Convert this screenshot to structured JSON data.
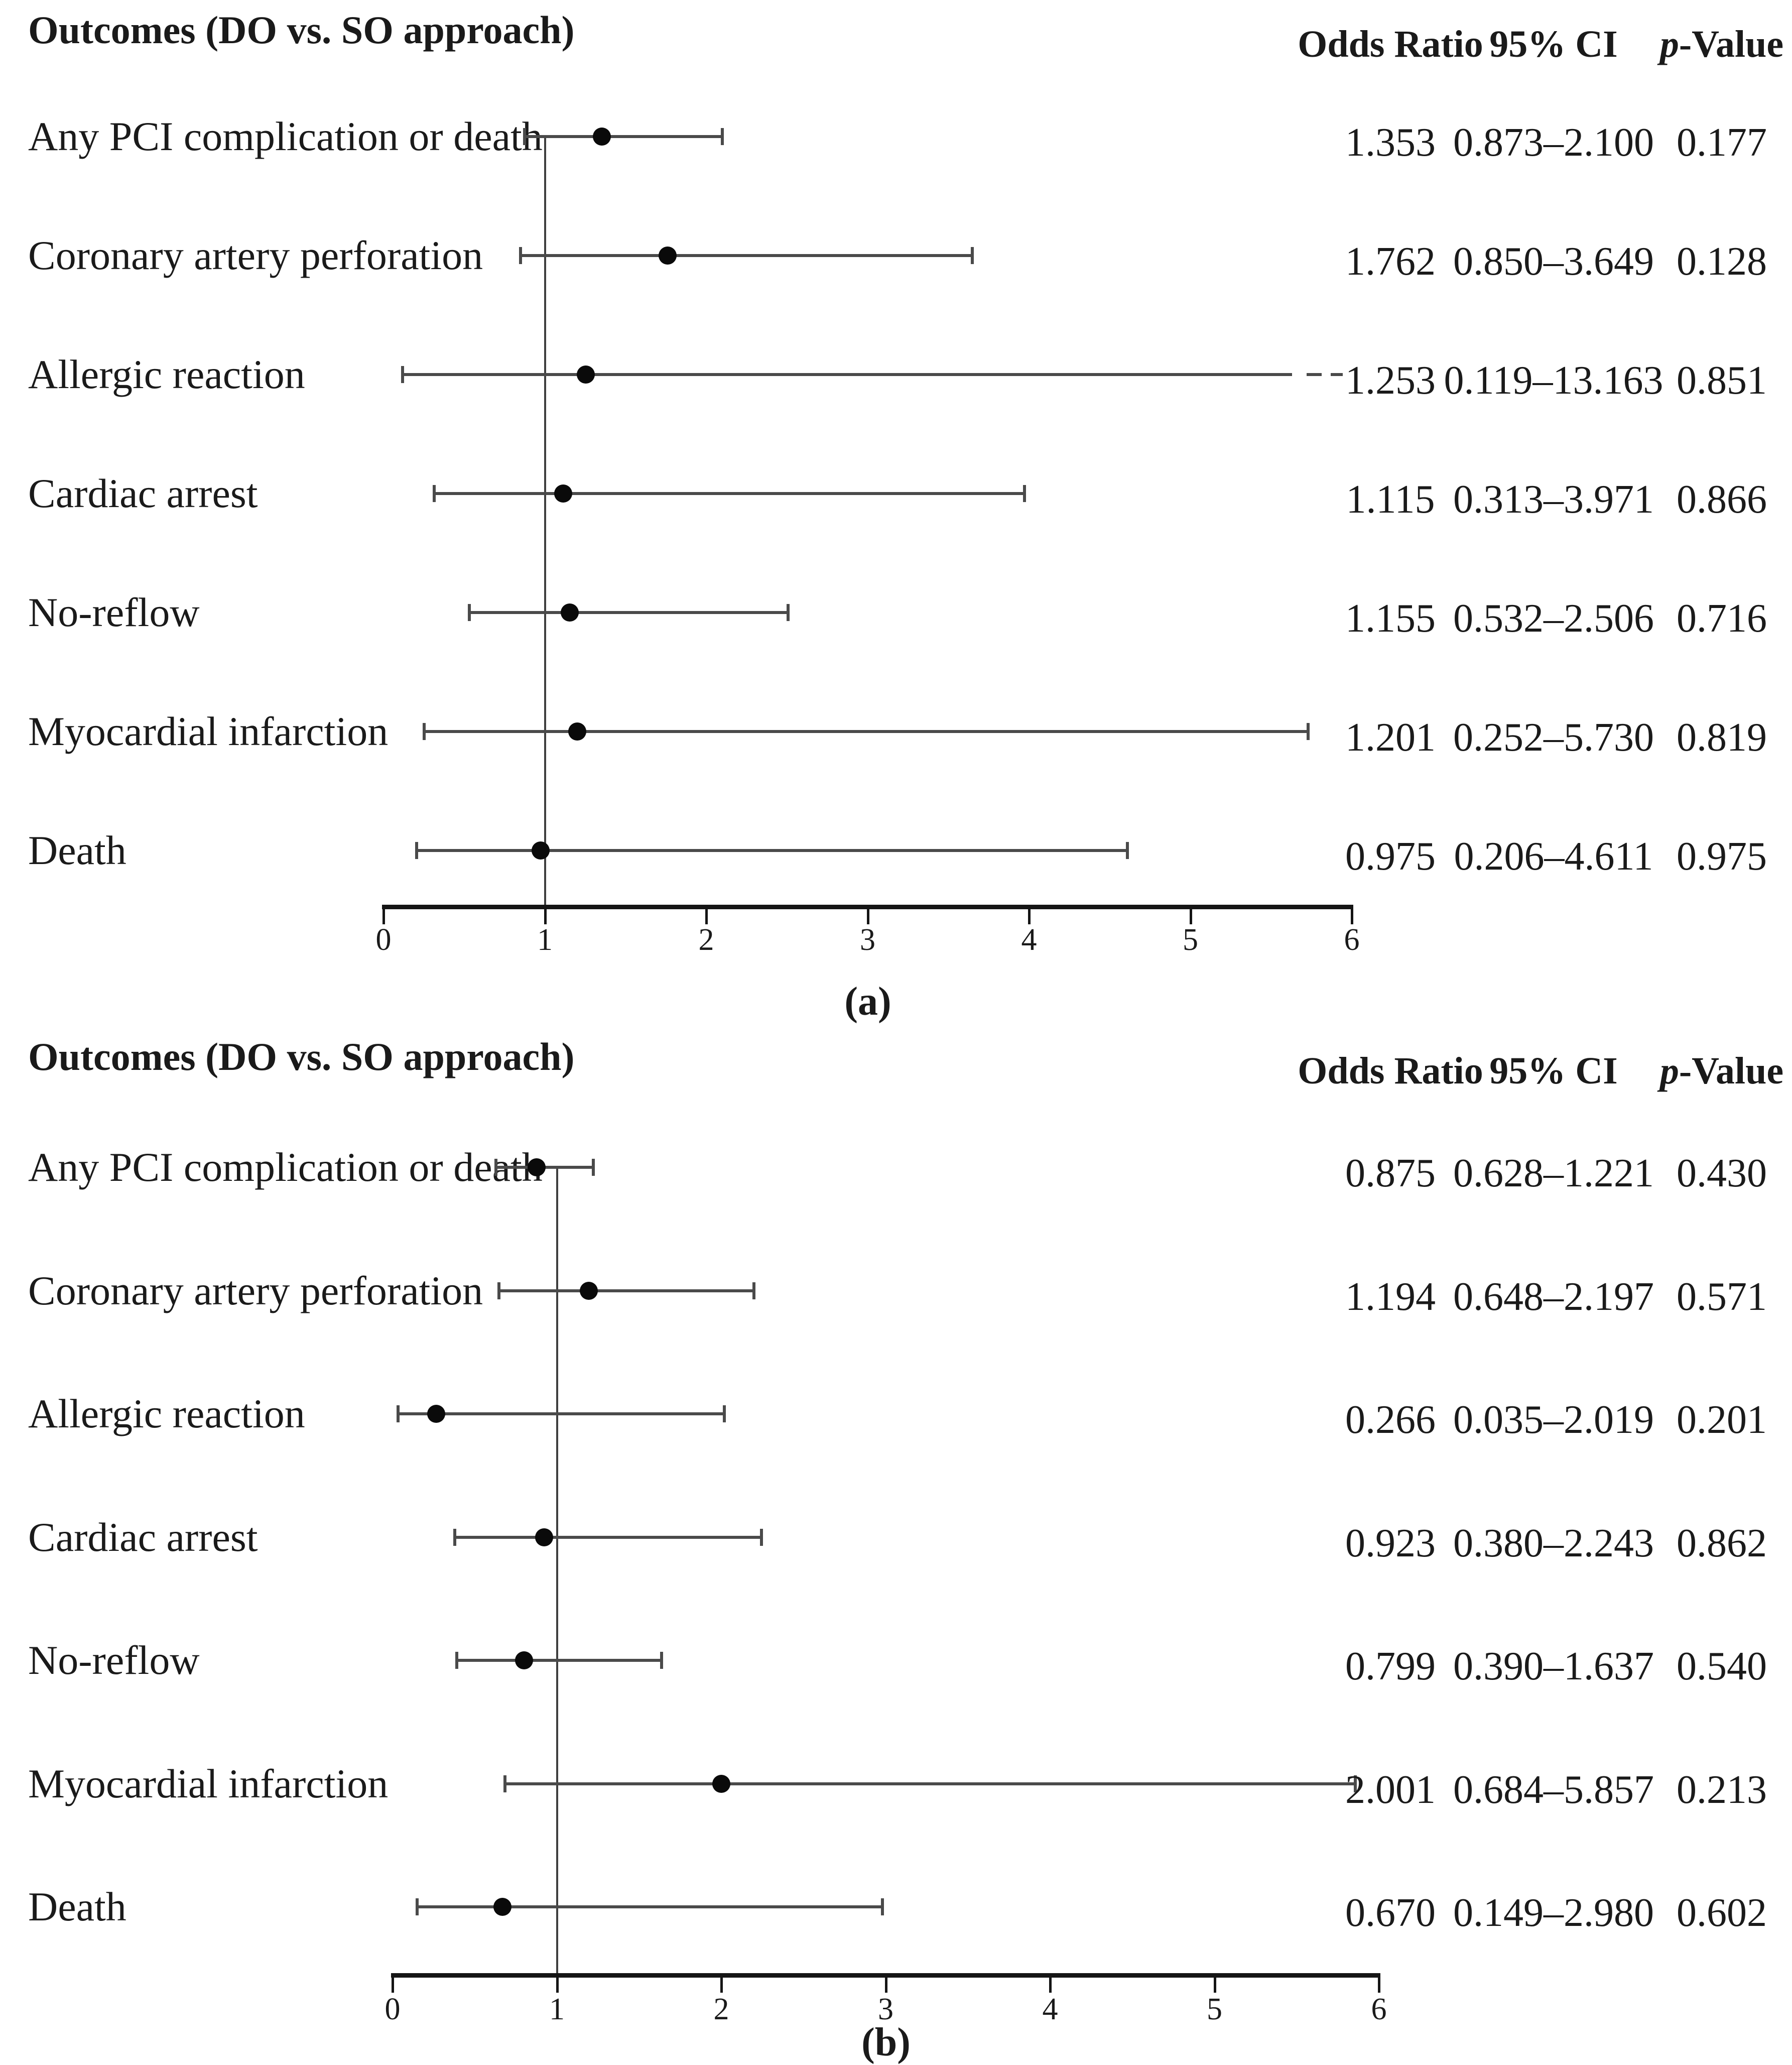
{
  "figure": {
    "background": "#ffffff",
    "colors": {
      "text": "#1a1a1a",
      "whisker_line": "#4a4a4a",
      "reference_line": "#3f3f3f",
      "axis": "#151515",
      "marker": "#0a0a0a"
    }
  },
  "chart_data": [
    {
      "type": "scatter",
      "subtype": "forest_plot",
      "panel_label": "(a)",
      "title": "Outcomes (DO vs. SO approach)",
      "column_headers": {
        "odds_ratio": "Odds Ratio",
        "ci": "95% CI",
        "p_italic": "p",
        "p_rest": "-Value"
      },
      "xlim": [
        0,
        6
      ],
      "xticks": [
        0,
        1,
        2,
        3,
        4,
        5,
        6
      ],
      "reference_line_x": 1,
      "grid": false,
      "legend": "none",
      "rows": [
        {
          "outcome": "Any PCI complication or death",
          "odds_ratio": 1.353,
          "ci_low": 0.873,
          "ci_high": 2.1,
          "p_value": 0.177
        },
        {
          "outcome": "Coronary artery perforation",
          "odds_ratio": 1.762,
          "ci_low": 0.85,
          "ci_high": 3.649,
          "p_value": 0.128
        },
        {
          "outcome": "Allergic reaction",
          "odds_ratio": 1.253,
          "ci_low": 0.119,
          "ci_high": 13.163,
          "p_value": 0.851,
          "ci_exceeds_axis": true
        },
        {
          "outcome": "Cardiac arrest",
          "odds_ratio": 1.115,
          "ci_low": 0.313,
          "ci_high": 3.971,
          "p_value": 0.866
        },
        {
          "outcome": "No-reflow",
          "odds_ratio": 1.155,
          "ci_low": 0.532,
          "ci_high": 2.506,
          "p_value": 0.716
        },
        {
          "outcome": "Myocardial infarction",
          "odds_ratio": 1.201,
          "ci_low": 0.252,
          "ci_high": 5.73,
          "p_value": 0.819
        },
        {
          "outcome": "Death",
          "odds_ratio": 0.975,
          "ci_low": 0.206,
          "ci_high": 4.611,
          "p_value": 0.975
        }
      ]
    },
    {
      "type": "scatter",
      "subtype": "forest_plot",
      "panel_label": "(b)",
      "title": "Outcomes (DO vs. SO approach)",
      "column_headers": {
        "odds_ratio": "Odds Ratio",
        "ci": "95% CI",
        "p_italic": "p",
        "p_rest": "-Value"
      },
      "xlim": [
        0,
        6
      ],
      "xticks": [
        0,
        1,
        2,
        3,
        4,
        5,
        6
      ],
      "reference_line_x": 1,
      "grid": false,
      "legend": "none",
      "rows": [
        {
          "outcome": "Any PCI complication or death",
          "odds_ratio": 0.875,
          "ci_low": 0.628,
          "ci_high": 1.221,
          "p_value": 0.43
        },
        {
          "outcome": "Coronary artery perforation",
          "odds_ratio": 1.194,
          "ci_low": 0.648,
          "ci_high": 2.197,
          "p_value": 0.571
        },
        {
          "outcome": "Allergic reaction",
          "odds_ratio": 0.266,
          "ci_low": 0.035,
          "ci_high": 2.019,
          "p_value": 0.201
        },
        {
          "outcome": "Cardiac arrest",
          "odds_ratio": 0.923,
          "ci_low": 0.38,
          "ci_high": 2.243,
          "p_value": 0.862
        },
        {
          "outcome": "No-reflow",
          "odds_ratio": 0.799,
          "ci_low": 0.39,
          "ci_high": 1.637,
          "p_value": 0.54
        },
        {
          "outcome": "Myocardial infarction",
          "odds_ratio": 2.001,
          "ci_low": 0.684,
          "ci_high": 5.857,
          "p_value": 0.213
        },
        {
          "outcome": "Death",
          "odds_ratio": 0.67,
          "ci_low": 0.149,
          "ci_high": 2.98,
          "p_value": 0.602
        }
      ]
    }
  ]
}
